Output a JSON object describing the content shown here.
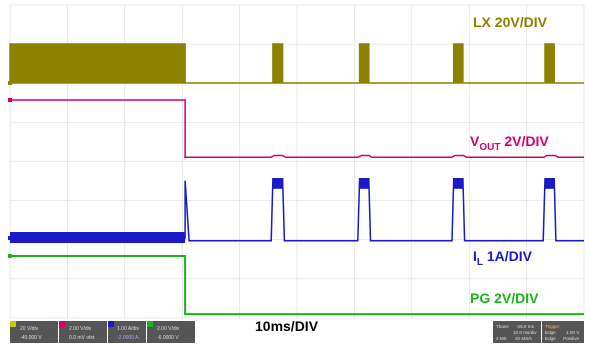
{
  "chart_data": {
    "type": "line",
    "timebase_label": "10ms/DIV",
    "divisions": {
      "x": 10,
      "y": 8
    },
    "grid": true,
    "colors": {
      "background": "#ffffff",
      "grid": "#d9d9d9",
      "LX": "#8c8200",
      "VOUT": "#d6006b",
      "IL": "#1a1ac8",
      "PG": "#19b419"
    },
    "series": [
      {
        "key": "LX",
        "label_parts": [
          "LX 20V/DIV"
        ],
        "label_sub": "",
        "label_tail": "",
        "x_div": [
          0.0,
          0.0,
          3.05,
          3.05,
          4.58,
          4.58,
          4.75,
          4.75,
          6.09,
          6.09,
          6.25,
          6.25,
          7.73,
          7.73,
          7.89,
          7.89,
          9.32,
          9.32,
          9.48,
          9.48,
          10.0
        ],
        "y_div": [
          0,
          1.5,
          1.5,
          0,
          0,
          1.5,
          1.5,
          0,
          0,
          1.5,
          1.5,
          0,
          0,
          1.5,
          1.5,
          0,
          0,
          1.5,
          1.5,
          0,
          0
        ],
        "marker": "1"
      },
      {
        "key": "VOUT",
        "label_parts": [
          "V"
        ],
        "label_sub": "OUT",
        "label_tail": " 2V/DIV",
        "x_div": [
          0.0,
          3.05,
          3.05,
          4.55,
          4.6,
          4.75,
          4.8,
          6.07,
          6.12,
          6.26,
          6.3,
          7.7,
          7.75,
          7.9,
          7.95,
          9.3,
          9.35,
          9.5,
          9.55,
          10.0
        ],
        "y_div": [
          0,
          0,
          -3.1,
          -3.1,
          -3.0,
          -3.0,
          -3.1,
          -3.1,
          -3.0,
          -3.0,
          -3.1,
          -3.1,
          -3.0,
          -3.0,
          -3.1,
          -3.1,
          -3.0,
          -3.0,
          -3.1,
          -3.1
        ],
        "marker": "2"
      },
      {
        "key": "IL",
        "label_parts": [
          "I"
        ],
        "label_sub": "L",
        "label_tail": " 1A/DIV",
        "x_div": [
          0.0,
          3.05,
          3.05,
          3.12,
          4.55,
          4.58,
          4.75,
          4.78,
          6.06,
          6.09,
          6.25,
          6.28,
          7.7,
          7.73,
          7.89,
          7.92,
          9.29,
          9.32,
          9.48,
          9.51,
          10.0
        ],
        "y_div": [
          0,
          0,
          3.1,
          -0.15,
          -0.15,
          3.2,
          3.2,
          -0.15,
          -0.15,
          3.2,
          3.2,
          -0.15,
          -0.15,
          3.2,
          3.2,
          -0.15,
          -0.15,
          3.2,
          3.2,
          -0.15,
          -0.15
        ],
        "marker": "3"
      },
      {
        "key": "PG",
        "label_parts": [
          "PG 2V/DIV"
        ],
        "label_sub": "",
        "label_tail": "",
        "x_div": [
          0.0,
          3.05,
          3.05,
          10.0
        ],
        "y_div": [
          0,
          0,
          -2.7,
          -2.7
        ],
        "marker": "4"
      }
    ],
    "footer_readouts": {
      "ch1": [
        "20 V/div",
        "-40.000 V"
      ],
      "ch2": [
        "2.00 V/div",
        "0.0 mV ofst"
      ],
      "ch3": [
        "1.00 A/div",
        "-2.0000 A"
      ],
      "ch4": [
        "2.00 V/div",
        "-6.0000 V"
      ],
      "timebase": [
        "Tbase",
        "-25.0 ms",
        "10.0 ms/div",
        "2 MS",
        "20 MS/s"
      ],
      "trigger": [
        "Trigger",
        "1.00 V",
        "Edge",
        "Edge",
        "Positive"
      ]
    }
  }
}
